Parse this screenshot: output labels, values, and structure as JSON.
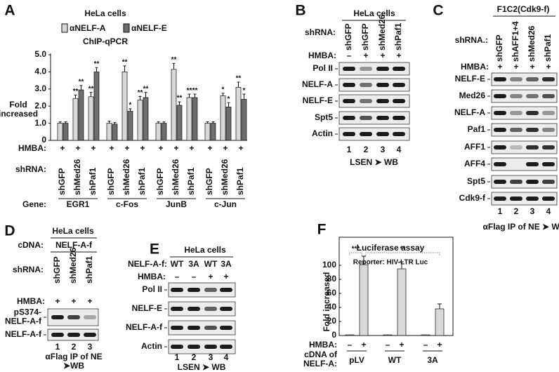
{
  "chart_data": [
    {
      "type": "bar",
      "panel": "A",
      "title": "HeLa cells",
      "subtitle": "ChIP-qPCR",
      "ylabel": [
        "Fold",
        "increased"
      ],
      "categories": [
        "shGFP",
        "shMed26",
        "shPaf1",
        "shGFP",
        "shMed26",
        "shPaf1",
        "shGFP",
        "shMed26",
        "shPaf1",
        "shGFP",
        "shMed26",
        "shPaf1"
      ],
      "category_label": "shRNA:",
      "groups": [
        "EGR1",
        "c-Fos",
        "JunB",
        "c-Jun"
      ],
      "group_label": "Gene:",
      "hmba_label": "HMBA:",
      "hmba": [
        "+",
        "+",
        "+",
        "+",
        "+",
        "+",
        "+",
        "+",
        "+",
        "+",
        "+",
        "+"
      ],
      "series": [
        {
          "name": "αNELF-A",
          "color": "#d9d9d9",
          "values": [
            1.0,
            2.45,
            2.55,
            1.0,
            4.0,
            2.35,
            1.0,
            4.15,
            2.5,
            1.0,
            2.6,
            3.1
          ],
          "errors": [
            0.08,
            0.2,
            0.25,
            0.12,
            0.35,
            0.22,
            0.08,
            0.35,
            0.2,
            0.08,
            0.15,
            0.3
          ],
          "significance": [
            null,
            "**",
            "**",
            null,
            "**",
            "**",
            null,
            "**",
            "**",
            null,
            "*",
            "**"
          ]
        },
        {
          "name": "αNELF-E",
          "color": "#6e6e6e",
          "values": [
            1.0,
            2.95,
            4.0,
            0.95,
            1.7,
            2.5,
            1.0,
            2.05,
            2.5,
            1.0,
            1.95,
            2.4
          ],
          "errors": [
            0.08,
            0.25,
            0.25,
            0.1,
            0.15,
            0.3,
            0.08,
            0.2,
            0.2,
            0.08,
            0.25,
            0.3
          ],
          "significance": [
            null,
            "**",
            "**",
            null,
            "*",
            "**",
            null,
            "**",
            "**",
            null,
            "*",
            "*"
          ]
        }
      ],
      "ylim": [
        0,
        5
      ],
      "yticks": [
        0,
        {
          "value": 1,
          "label": "1.0"
        },
        {
          "value": 2,
          "label": "2.0"
        },
        {
          "value": 3,
          "label": "3.0"
        },
        {
          "value": 4,
          "label": "4.0"
        },
        {
          "value": 5,
          "label": "5.0"
        }
      ]
    },
    {
      "type": "bar",
      "panel": "F",
      "title": "Luciferase assay",
      "subtitle": "Reporter: HIV-LTR Luc",
      "ylabel": [
        "Fold increased"
      ],
      "categories": [
        "–",
        "+",
        "–",
        "+",
        "–",
        "+"
      ],
      "category_label": "HMBA:",
      "groups": [
        "pLV",
        "WT",
        "3A"
      ],
      "group_label": [
        "cDNA of",
        "NELF-A:"
      ],
      "color": "#d9d9d9",
      "values": [
        1,
        101,
        1,
        95,
        1,
        38
      ],
      "errors": [
        0,
        12,
        0,
        10,
        0,
        7
      ],
      "annotations": [
        "***",
        "**"
      ],
      "ylim": [
        0,
        140
      ],
      "yticks": [
        0,
        20,
        40,
        60,
        80,
        100
      ]
    }
  ],
  "blots": {
    "B": {
      "panel": "B",
      "title": "HeLa cells",
      "lane_label": "shRNA:",
      "lanes": [
        "shGFP",
        "shGFP",
        "shMed26",
        "shPaf1"
      ],
      "hmba_label": "HMBA:",
      "hmba": [
        "–",
        "+",
        "+",
        "+"
      ],
      "rows": [
        "Pol II",
        "NELF-A",
        "NELF-E",
        "Spt5",
        "Actin"
      ],
      "lane_numbers": [
        "1",
        "2",
        "3",
        "4"
      ],
      "footer": [
        "LSEN ➤ WB"
      ]
    },
    "C": {
      "panel": "C",
      "title": "F1C2(Cdk9-f)",
      "lane_label": "shRNA.:",
      "lanes": [
        "shGFP",
        "shAFF1+4",
        "shMed26",
        "shPaf1"
      ],
      "hmba_label": "HMBA:",
      "hmba": [
        "+",
        "+",
        "+",
        "+"
      ],
      "rows": [
        "NELF-E",
        "Med26",
        "NELF-A",
        "Paf1",
        "AFF1",
        "AFF4",
        "Spt5",
        "Cdk9-f"
      ],
      "lane_numbers": [
        "1",
        "2",
        "3",
        "4"
      ],
      "footer": [
        "αFlag IP of NE ➤ WB"
      ]
    },
    "D": {
      "panel": "D",
      "title": "HeLa cells",
      "cdna_label": "cDNA:",
      "cdna": "NELF-A-f",
      "lane_label": "shRNA:",
      "lanes": [
        "shGFP",
        "shMed26",
        "shPaf1"
      ],
      "hmba_label": "HMBA:",
      "hmba": [
        "+",
        "+",
        "+"
      ],
      "rows": [
        [
          "pS374-",
          "NELF-A-f"
        ],
        [
          "NELF-A-f"
        ]
      ],
      "lane_numbers": [
        "1",
        "2",
        "3"
      ],
      "footer": [
        "αFlag IP of NE",
        "➤WB"
      ]
    },
    "E": {
      "panel": "E",
      "title": "HeLa cells",
      "lane_label": "NELF-A-f:",
      "lanes": [
        "WT",
        "3A",
        "WT",
        "3A"
      ],
      "hmba_label": "HMBA:",
      "hmba": [
        "–",
        "–",
        "+",
        "+"
      ],
      "rows": [
        "Pol II",
        "NELF-E",
        "NELF-A-f",
        "Actin"
      ],
      "lane_numbers": [
        "1",
        "2",
        "3",
        "4"
      ],
      "footer": [
        "LSEN ➤ WB"
      ]
    }
  }
}
